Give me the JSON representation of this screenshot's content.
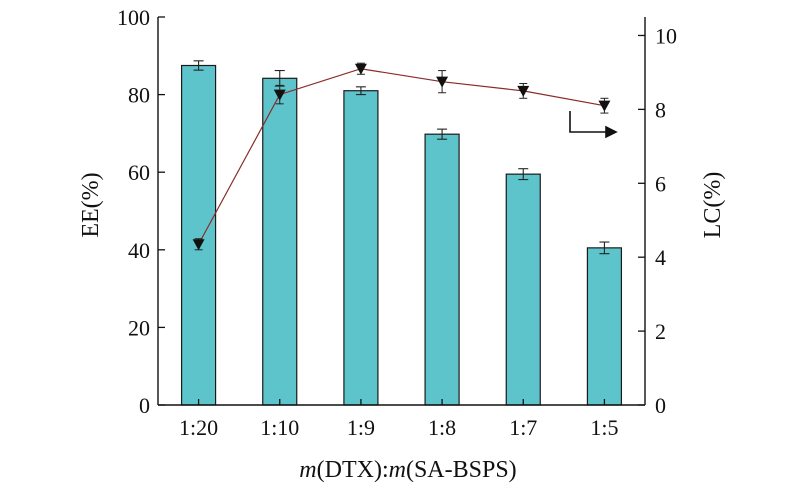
{
  "chart_data": {
    "type": "bar",
    "categories": [
      "1:20",
      "1:10",
      "1:9",
      "1:8",
      "1:7",
      "1:5"
    ],
    "x_axis": {
      "label_prefix_italic": "m",
      "label_part1": "(DTX):",
      "label_mid_italic": "m",
      "label_part2": "(SA-BSPS)"
    },
    "y_left": {
      "label": "EE(%)",
      "ylim": [
        0,
        100
      ],
      "ticks": [
        "0",
        "20",
        "40",
        "60",
        "80",
        "100"
      ]
    },
    "y_right": {
      "label": "LC(%)",
      "ylim": [
        0,
        10.5
      ],
      "ticks": [
        "0",
        "2",
        "4",
        "6",
        "8",
        "10"
      ]
    },
    "series": [
      {
        "type": "bar",
        "axis": "left",
        "values": [
          87.5,
          84.2,
          81.0,
          69.8,
          59.5,
          40.5
        ],
        "errors": [
          1.2,
          2.0,
          1.0,
          1.3,
          1.4,
          1.5
        ],
        "color": "#5ec4cc"
      },
      {
        "type": "line",
        "axis": "right",
        "marker": "down-triangle",
        "values": [
          4.35,
          8.4,
          9.1,
          8.75,
          8.5,
          8.1
        ],
        "errors": [
          0.15,
          0.25,
          0.15,
          0.3,
          0.2,
          0.2
        ],
        "color": "#8b2a2a"
      }
    ],
    "annotation": "arrow pointing to right axis",
    "grid": false,
    "legend": "none"
  }
}
